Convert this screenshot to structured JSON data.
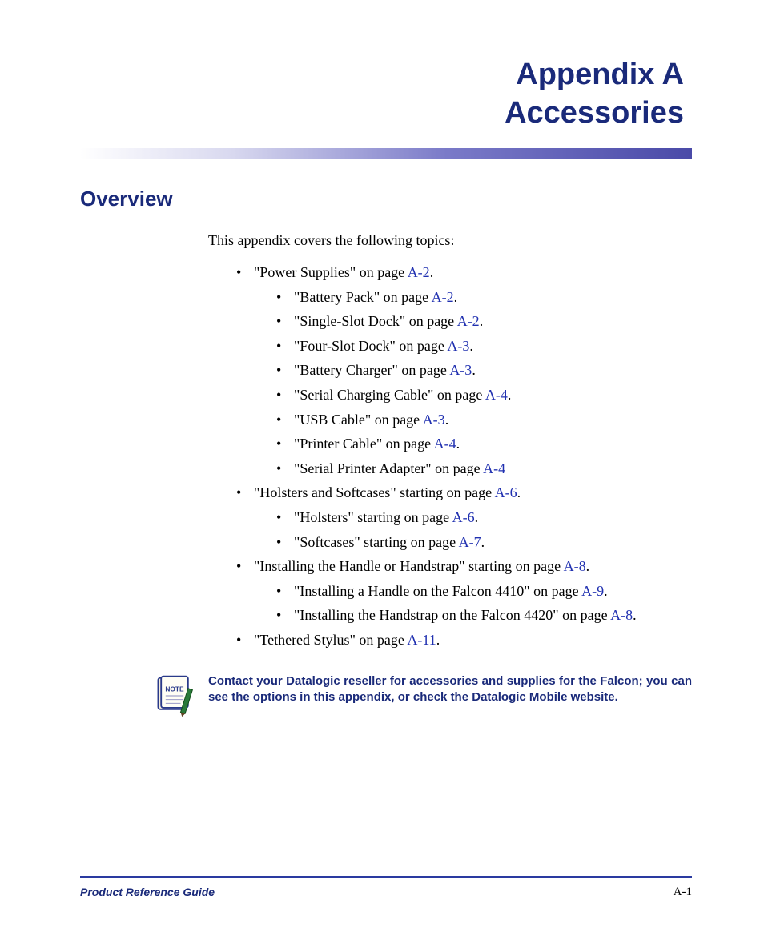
{
  "title": {
    "line1": "Appendix A",
    "line2": "Accessories"
  },
  "colors": {
    "heading": "#1a2a7a",
    "link": "#2030b0",
    "footer_rule": "#2a3aa0",
    "bg": "#ffffff"
  },
  "section_heading": "Overview",
  "intro_text": "This appendix covers the following topics:",
  "toc": [
    {
      "text": "\"Power Supplies\" on page ",
      "page": "A-2",
      "suffix": ".",
      "children": [
        {
          "text": "\"Battery Pack\" on page ",
          "page": "A-2",
          "suffix": "."
        },
        {
          "text": "\"Single-Slot Dock\" on page ",
          "page": "A-2",
          "suffix": "."
        },
        {
          "text": "\"Four-Slot Dock\" on page ",
          "page": "A-3",
          "suffix": "."
        },
        {
          "text": "\"Battery Charger\" on page ",
          "page": "A-3",
          "suffix": "."
        },
        {
          "text": "\"Serial Charging Cable\" on page ",
          "page": "A-4",
          "suffix": "."
        },
        {
          "text": "\"USB Cable\" on page ",
          "page": "A-3",
          "suffix": "."
        },
        {
          "text": "\"Printer Cable\" on page ",
          "page": "A-4",
          "suffix": "."
        },
        {
          "text": "\"Serial Printer Adapter\" on page ",
          "page": "A-4",
          "suffix": ""
        }
      ]
    },
    {
      "text": "\"Holsters and Softcases\" starting on page ",
      "page": "A-6",
      "suffix": ".",
      "children": [
        {
          "text": "\"Holsters\" starting on page ",
          "page": "A-6",
          "suffix": "."
        },
        {
          "text": "\"Softcases\" starting on page ",
          "page": "A-7",
          "suffix": "."
        }
      ]
    },
    {
      "text": "\"Installing the Handle or Handstrap\" starting on page ",
      "page": "A-8",
      "suffix": ".",
      "children": [
        {
          "text": "\"Installing a Handle on the Falcon 4410\" on page ",
          "page": "A-9",
          "suffix": "."
        },
        {
          "text": "\"Installing the Handstrap on the Falcon 4420\" on page ",
          "page": "A-8",
          "suffix": "."
        }
      ]
    },
    {
      "text": "\"Tethered Stylus\" on page ",
      "page": "A-11",
      "suffix": ".",
      "children": []
    }
  ],
  "note": {
    "icon_label": "NOTE",
    "text": "Contact your Datalogic reseller for accessories and supplies for the Falcon; you can see the options in this appendix, or check the Datalogic Mobile website."
  },
  "footer": {
    "left": "Product Reference Guide",
    "right": "A-1"
  }
}
